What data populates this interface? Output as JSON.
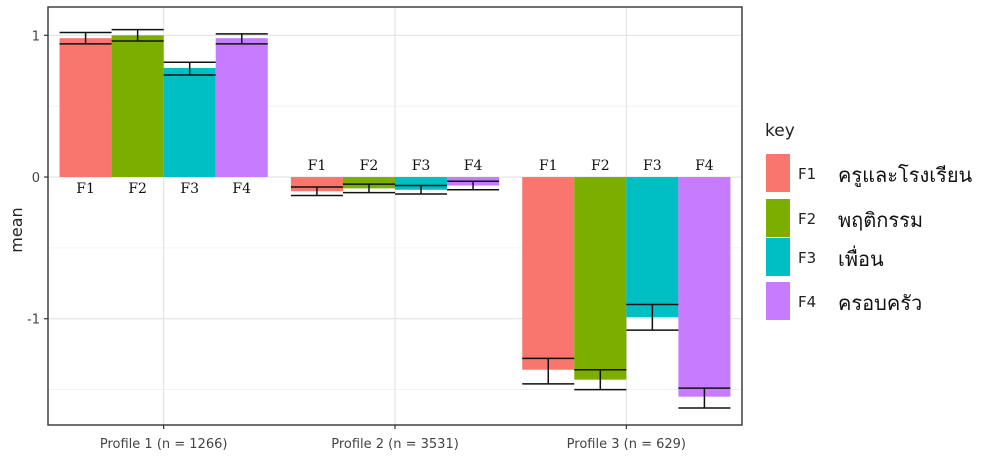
{
  "chart_data": {
    "type": "bar",
    "title": "",
    "xlabel": "",
    "ylabel": "mean",
    "ylim": [
      -1.75,
      1.2
    ],
    "y_ticks": [
      1,
      0,
      -1
    ],
    "y_tick_labels": [
      "1",
      "0",
      "-1"
    ],
    "grid": true,
    "legend_position": "right",
    "legend_title": "key",
    "categories": [
      "Profile 1 (n = 1266)",
      "Profile 2 (n = 3531)",
      "Profile 3 (n = 629)"
    ],
    "series": [
      {
        "name": "F1",
        "label": "ครูและโรงเรียน",
        "color": "#F8766D",
        "values": [
          0.98,
          -0.1,
          -1.36
        ],
        "ci_low": [
          0.94,
          -0.13,
          -1.46
        ],
        "ci_high": [
          1.02,
          -0.07,
          -1.28
        ]
      },
      {
        "name": "F2",
        "label": "พฤติกรรม",
        "color": "#7CAE00",
        "values": [
          1.0,
          -0.08,
          -1.43
        ],
        "ci_low": [
          0.96,
          -0.11,
          -1.5
        ],
        "ci_high": [
          1.04,
          -0.05,
          -1.36
        ]
      },
      {
        "name": "F3",
        "label": "เพื่อน",
        "color": "#00BFC4",
        "values": [
          0.77,
          -0.09,
          -0.99
        ],
        "ci_low": [
          0.72,
          -0.12,
          -1.08
        ],
        "ci_high": [
          0.81,
          -0.06,
          -0.9
        ]
      },
      {
        "name": "F4",
        "label": "ครอบครัว",
        "color": "#C77CFF",
        "values": [
          0.98,
          -0.06,
          -1.55
        ],
        "ci_low": [
          0.94,
          -0.09,
          -1.63
        ],
        "ci_high": [
          1.01,
          -0.03,
          -1.49
        ]
      }
    ],
    "bar_labels": [
      "F1",
      "F2",
      "F3",
      "F4"
    ]
  }
}
